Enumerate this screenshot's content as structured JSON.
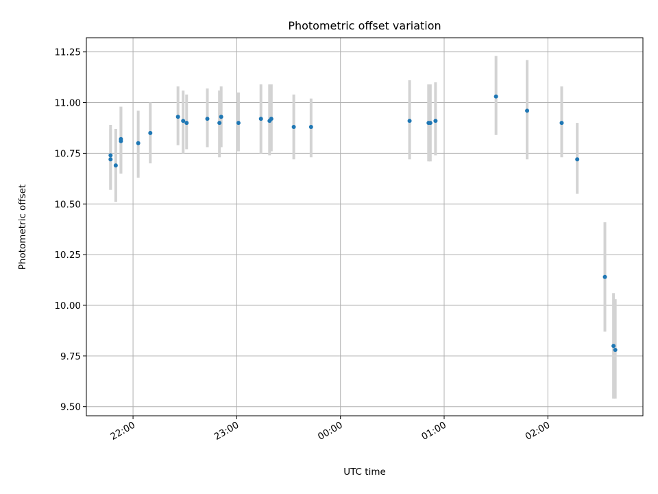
{
  "chart_data": {
    "type": "scatter",
    "title": "Photometric offset variation",
    "xlabel": "UTC time",
    "ylabel": "Photometric offset",
    "x_axis_kind": "time",
    "xlim": [
      "21:33",
      "02:55"
    ],
    "ylim": [
      9.455,
      11.32
    ],
    "grid": true,
    "x_ticks": [
      {
        "t": "22:00",
        "label": "22:00"
      },
      {
        "t": "23:00",
        "label": "23:00"
      },
      {
        "t": "00:00",
        "label": "00:00"
      },
      {
        "t": "01:00",
        "label": "01:00"
      },
      {
        "t": "02:00",
        "label": "02:00"
      }
    ],
    "y_ticks": [
      9.5,
      9.75,
      10.0,
      10.25,
      10.5,
      10.75,
      11.0,
      11.25
    ],
    "y_tick_labels": [
      "9.50",
      "9.75",
      "10.00",
      "10.25",
      "10.50",
      "10.75",
      "11.00",
      "11.25"
    ],
    "colors": {
      "point": "#1f77b4",
      "errorbar": "#d3d3d3",
      "grid": "#b0b0b0",
      "axes": "#000000"
    },
    "series": [
      {
        "points": [
          {
            "t": "21:47",
            "y": 10.74,
            "lo": 10.57,
            "hi": 10.89
          },
          {
            "t": "21:47",
            "y": 10.72,
            "lo": 10.57,
            "hi": 10.87
          },
          {
            "t": "21:50",
            "y": 10.69,
            "lo": 10.51,
            "hi": 10.87
          },
          {
            "t": "21:53",
            "y": 10.81,
            "lo": 10.65,
            "hi": 10.98
          },
          {
            "t": "21:53",
            "y": 10.82,
            "lo": 10.65,
            "hi": 10.98
          },
          {
            "t": "22:03",
            "y": 10.8,
            "lo": 10.63,
            "hi": 10.96
          },
          {
            "t": "22:10",
            "y": 10.85,
            "lo": 10.7,
            "hi": 11.0
          },
          {
            "t": "22:26",
            "y": 10.93,
            "lo": 10.79,
            "hi": 11.08
          },
          {
            "t": "22:29",
            "y": 10.91,
            "lo": 10.75,
            "hi": 11.06
          },
          {
            "t": "22:31",
            "y": 10.9,
            "lo": 10.77,
            "hi": 11.04
          },
          {
            "t": "22:43",
            "y": 10.92,
            "lo": 10.78,
            "hi": 11.07
          },
          {
            "t": "22:50",
            "y": 10.9,
            "lo": 10.73,
            "hi": 11.06
          },
          {
            "t": "22:51",
            "y": 10.93,
            "lo": 10.78,
            "hi": 11.08
          },
          {
            "t": "23:01",
            "y": 10.9,
            "lo": 10.76,
            "hi": 11.05
          },
          {
            "t": "23:14",
            "y": 10.92,
            "lo": 10.75,
            "hi": 11.09
          },
          {
            "t": "23:19",
            "y": 10.91,
            "lo": 10.74,
            "hi": 11.09
          },
          {
            "t": "23:20",
            "y": 10.92,
            "lo": 10.76,
            "hi": 11.09
          },
          {
            "t": "23:33",
            "y": 10.88,
            "lo": 10.72,
            "hi": 11.04
          },
          {
            "t": "23:43",
            "y": 10.88,
            "lo": 10.73,
            "hi": 11.02
          },
          {
            "t": "00:40",
            "y": 10.91,
            "lo": 10.72,
            "hi": 11.11
          },
          {
            "t": "00:51",
            "y": 10.9,
            "lo": 10.71,
            "hi": 11.09
          },
          {
            "t": "00:52",
            "y": 10.9,
            "lo": 10.71,
            "hi": 11.09
          },
          {
            "t": "00:55",
            "y": 10.91,
            "lo": 10.74,
            "hi": 11.1
          },
          {
            "t": "01:30",
            "y": 11.03,
            "lo": 10.84,
            "hi": 11.23
          },
          {
            "t": "01:48",
            "y": 10.96,
            "lo": 10.72,
            "hi": 11.21
          },
          {
            "t": "02:08",
            "y": 10.9,
            "lo": 10.73,
            "hi": 11.08
          },
          {
            "t": "02:17",
            "y": 10.72,
            "lo": 10.55,
            "hi": 10.9
          },
          {
            "t": "02:33",
            "y": 10.14,
            "lo": 9.87,
            "hi": 10.41
          },
          {
            "t": "02:38",
            "y": 9.8,
            "lo": 9.54,
            "hi": 10.06
          },
          {
            "t": "02:39",
            "y": 9.78,
            "lo": 9.54,
            "hi": 10.03
          }
        ]
      }
    ]
  }
}
